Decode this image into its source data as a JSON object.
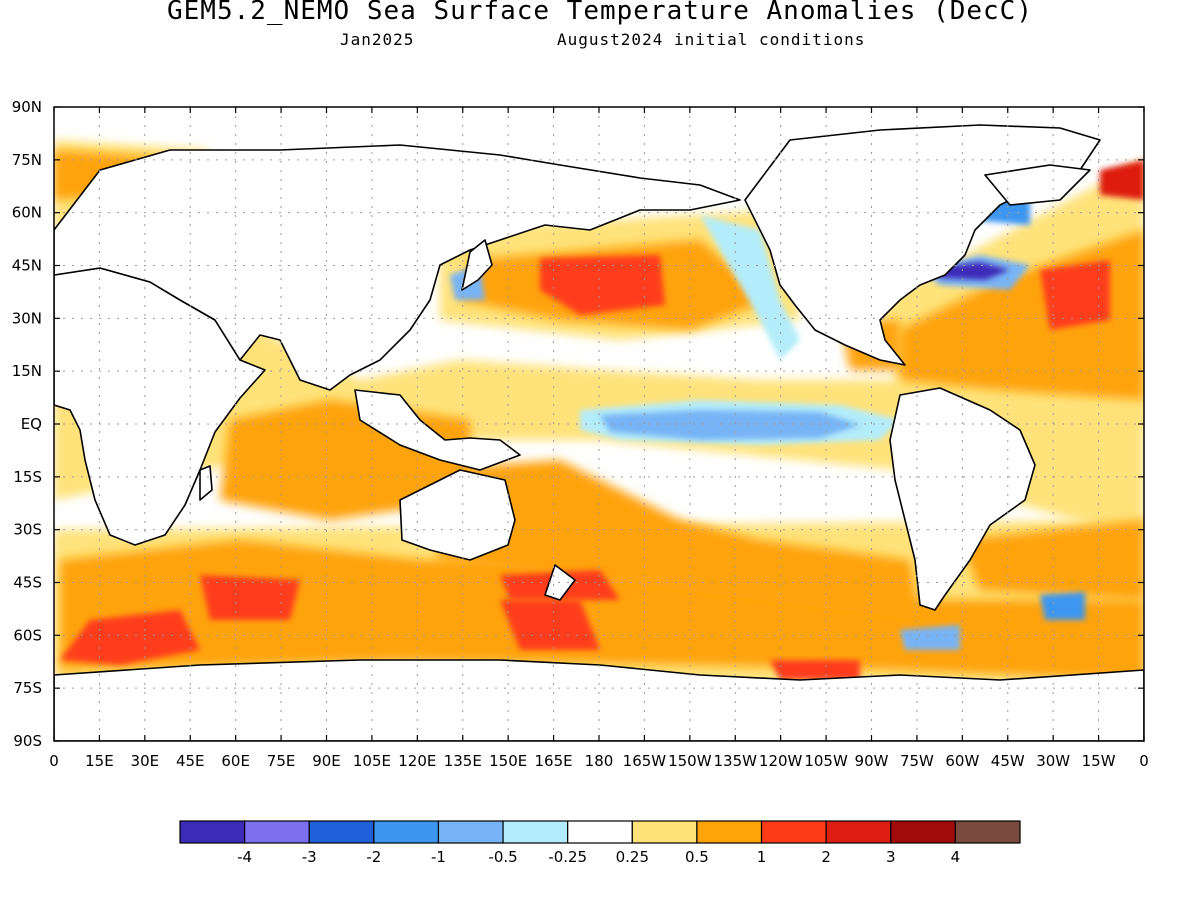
{
  "title": "GEM5.2_NEMO Sea Surface Temperature Anomalies (DecC)",
  "subtitle_left": "Jan2025",
  "subtitle_right": "August2024 initial conditions",
  "colors": {
    "land": "#ffffff",
    "coast": "#000000",
    "grid": "#9a9a9a"
  },
  "lat_labels": [
    "90N",
    "75N",
    "60N",
    "45N",
    "30N",
    "15N",
    "EQ",
    "15S",
    "30S",
    "45S",
    "60S",
    "75S",
    "90S"
  ],
  "lon_labels": [
    "0",
    "15E",
    "30E",
    "45E",
    "60E",
    "75E",
    "90E",
    "105E",
    "120E",
    "135E",
    "150E",
    "165E",
    "180",
    "165W",
    "150W",
    "135W",
    "120W",
    "105W",
    "90W",
    "75W",
    "60W",
    "45W",
    "30W",
    "15W",
    "0"
  ],
  "colorbar": {
    "colors": [
      "#3c2bb8",
      "#7c6ff0",
      "#1f60d8",
      "#3c96ef",
      "#78b4f5",
      "#b3ecfa",
      "#ffffff",
      "#ffe27a",
      "#ffa30a",
      "#ff3c1a",
      "#dd1e10",
      "#a30b0b",
      "#7a4a3e"
    ],
    "labels": [
      "-4",
      "-3",
      "-2",
      "-1",
      "-0.5",
      "-0.25",
      "0.25",
      "0.5",
      "1",
      "2",
      "3",
      "4"
    ]
  }
}
